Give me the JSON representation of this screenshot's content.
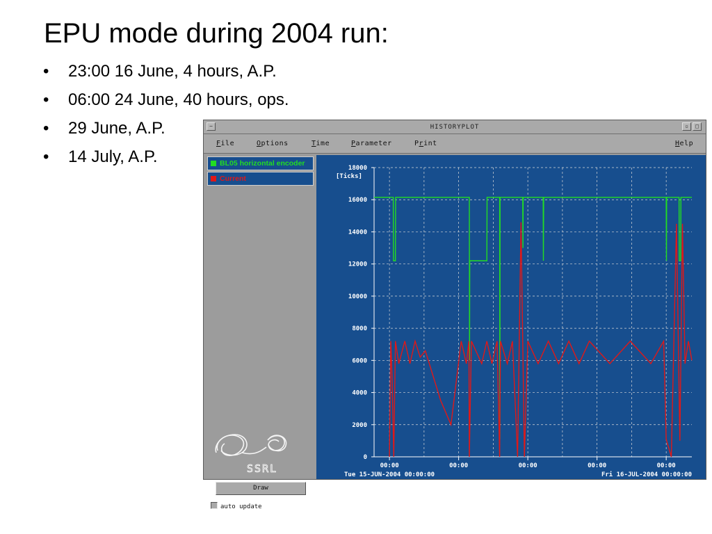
{
  "slide": {
    "title": "EPU mode during 2004 run:",
    "bullets": [
      "23:00 16 June, 4 hours, A.P.",
      "06:00 24 June, 40 hours, ops.",
      "29 June, A.P.",
      "14 July, A.P."
    ]
  },
  "window": {
    "title": "HISTORYPLOT",
    "menu": [
      {
        "label": "File",
        "mnemonic": "F"
      },
      {
        "label": "Options",
        "mnemonic": "O"
      },
      {
        "label": "Time",
        "mnemonic": "T"
      },
      {
        "label": "Parameter",
        "mnemonic": "P"
      },
      {
        "label": "Print",
        "mnemonic": "r"
      },
      {
        "label": "Help",
        "mnemonic": "H"
      }
    ],
    "legend": [
      {
        "label": "BL05 horizontal encoder",
        "color": "#22dd22"
      },
      {
        "label": "Current",
        "color": "#e01818"
      }
    ],
    "logo_text": "SSRL",
    "draw_button": "Draw",
    "auto_update_label": "auto update",
    "colors": {
      "plot_background": "#174e8e",
      "panel_gray": "#9c9c9c"
    }
  },
  "chart_data": {
    "type": "line",
    "title": "",
    "ylabel": "[Ticks]",
    "xlabel": "",
    "ylim": [
      0,
      18000
    ],
    "yticks": [
      0,
      2000,
      4000,
      6000,
      8000,
      10000,
      12000,
      14000,
      16000,
      18000
    ],
    "xlim": [
      "2004-06-15 00:00",
      "2004-07-16 00:00"
    ],
    "xtick_labels": [
      "00:00",
      "00:00",
      "00:00",
      "00:00",
      "00:00"
    ],
    "x_start_label": "Tue 15-JUN-2004 00:00:00",
    "x_end_label": "Fri 16-JUL-2004 00:00:00",
    "grid": true,
    "series": [
      {
        "name": "BL05 horizontal encoder",
        "color": "#22dd22",
        "points": [
          [
            "2004-06-15 00:00",
            16150
          ],
          [
            "2004-06-16 21:00",
            16150
          ],
          [
            "2004-06-16 21:30",
            12200
          ],
          [
            "2004-06-17 02:00",
            12200
          ],
          [
            "2004-06-17 02:30",
            16150
          ],
          [
            "2004-06-24 07:00",
            16150
          ],
          [
            "2004-06-24 07:30",
            6000
          ],
          [
            "2004-06-24 08:00",
            12200
          ],
          [
            "2004-06-26 00:00",
            12200
          ],
          [
            "2004-06-26 00:30",
            16150
          ],
          [
            "2004-06-27 06:00",
            16150
          ],
          [
            "2004-06-27 06:30",
            1100
          ],
          [
            "2004-06-27 07:00",
            16150
          ],
          [
            "2004-06-29 12:00",
            16150
          ],
          [
            "2004-06-29 12:30",
            13000
          ],
          [
            "2004-06-29 13:00",
            16150
          ],
          [
            "2004-07-01 12:00",
            16150
          ],
          [
            "2004-07-01 12:30",
            12200
          ],
          [
            "2004-07-01 13:00",
            16150
          ],
          [
            "2004-07-13 12:00",
            16150
          ],
          [
            "2004-07-13 12:30",
            12200
          ],
          [
            "2004-07-13 13:00",
            16150
          ],
          [
            "2004-07-14 18:00",
            16150
          ],
          [
            "2004-07-14 18:30",
            12200
          ],
          [
            "2004-07-14 22:00",
            12200
          ],
          [
            "2004-07-14 22:30",
            16150
          ],
          [
            "2004-07-16 00:00",
            16150
          ]
        ]
      },
      {
        "name": "Current",
        "color": "#e01818",
        "points": [
          [
            "2004-06-16 12:00",
            0
          ],
          [
            "2004-06-16 15:00",
            7200
          ],
          [
            "2004-06-16 18:00",
            5000
          ],
          [
            "2004-06-16 22:00",
            0
          ],
          [
            "2004-06-17 02:00",
            7200
          ],
          [
            "2004-06-17 10:00",
            5800
          ],
          [
            "2004-06-18 00:00",
            7200
          ],
          [
            "2004-06-18 12:00",
            5800
          ],
          [
            "2004-06-19 00:00",
            7200
          ],
          [
            "2004-06-19 12:00",
            6200
          ],
          [
            "2004-06-20 00:00",
            6600
          ],
          [
            "2004-06-21 12:00",
            3500
          ],
          [
            "2004-06-22 12:00",
            2000
          ],
          [
            "2004-06-23 12:00",
            7200
          ],
          [
            "2004-06-24 00:00",
            5800
          ],
          [
            "2004-06-24 06:00",
            7200
          ],
          [
            "2004-06-24 07:00",
            0
          ],
          [
            "2004-06-24 12:00",
            7200
          ],
          [
            "2004-06-25 12:00",
            5800
          ],
          [
            "2004-06-26 00:00",
            7200
          ],
          [
            "2004-06-26 12:00",
            5800
          ],
          [
            "2004-06-27 00:00",
            7200
          ],
          [
            "2004-06-27 06:00",
            0
          ],
          [
            "2004-06-27 08:00",
            7200
          ],
          [
            "2004-06-28 00:00",
            5800
          ],
          [
            "2004-06-28 12:00",
            7200
          ],
          [
            "2004-06-29 00:00",
            0
          ],
          [
            "2004-06-29 08:00",
            14600
          ],
          [
            "2004-06-29 16:00",
            0
          ],
          [
            "2004-06-30 00:00",
            7200
          ],
          [
            "2004-07-01 00:00",
            5800
          ],
          [
            "2004-07-02 00:00",
            7200
          ],
          [
            "2004-07-03 00:00",
            5800
          ],
          [
            "2004-07-04 00:00",
            7200
          ],
          [
            "2004-07-05 00:00",
            5800
          ],
          [
            "2004-07-06 00:00",
            7200
          ],
          [
            "2004-07-08 00:00",
            5800
          ],
          [
            "2004-07-10 00:00",
            7200
          ],
          [
            "2004-07-12 00:00",
            5800
          ],
          [
            "2004-07-13 06:00",
            7200
          ],
          [
            "2004-07-13 12:00",
            1100
          ],
          [
            "2004-07-14 00:00",
            0
          ],
          [
            "2004-07-14 12:00",
            14500
          ],
          [
            "2004-07-14 20:00",
            1000
          ],
          [
            "2004-07-15 02:00",
            14500
          ],
          [
            "2004-07-15 08:00",
            5800
          ],
          [
            "2004-07-15 16:00",
            7200
          ],
          [
            "2004-07-16 00:00",
            6000
          ]
        ]
      }
    ]
  }
}
